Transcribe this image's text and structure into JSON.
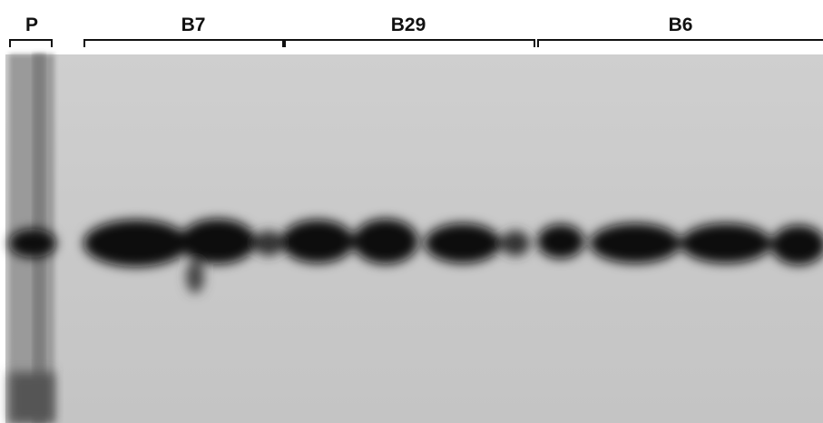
{
  "group_labels": [
    "P",
    "B7",
    "B29",
    "B6"
  ]
}
